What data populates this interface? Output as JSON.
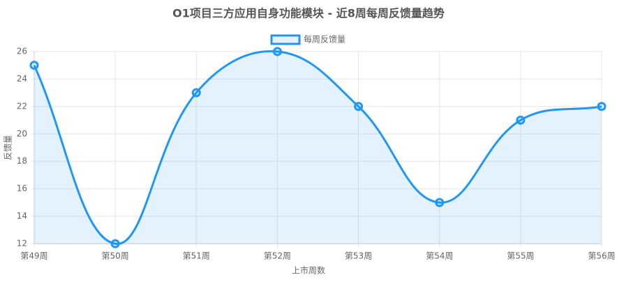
{
  "chart_data": {
    "type": "line",
    "title": "O1项目三方应用自身功能模块 - 近8周每周反馈量趋势",
    "x_label": "上市周数",
    "y_label": "反馈量",
    "categories": [
      "第49周",
      "第50周",
      "第51周",
      "第52周",
      "第53周",
      "第54周",
      "第55周",
      "第56周"
    ],
    "series": [
      {
        "name": "每周反馈量",
        "color": "#2196f3",
        "values": [
          25,
          12,
          23,
          26,
          22,
          15,
          21,
          22
        ]
      }
    ],
    "ylim": [
      12,
      26
    ],
    "yticks": [
      12,
      14,
      16,
      18,
      20,
      22,
      24,
      26
    ],
    "grid": true,
    "fill": true,
    "smooth": true,
    "legend": "top"
  }
}
